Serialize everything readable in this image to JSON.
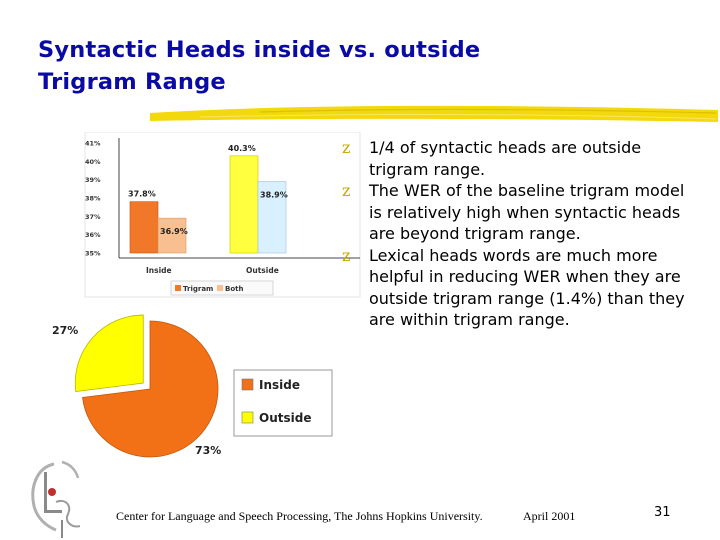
{
  "slide": {
    "title_line1": "Syntactic Heads inside vs. outside",
    "title_line2": "Trigram Range",
    "bullets": [
      "1/4 of syntactic heads are outside trigram range.",
      "The WER of the baseline trigram model is relatively high when syntactic heads are beyond trigram range.",
      "Lexical heads words are much more helpful in reducing WER when they are outside trigram range (1.4%) than they are within trigram range."
    ],
    "bullet_mark": "z",
    "footer_text": "Center for Language and Speech Processing, The Johns Hopkins University.",
    "footer_date": "April 2001",
    "page_number": "31"
  },
  "colors": {
    "title": "#0a0aa5",
    "rule": "#f2d600",
    "bullet_mark": "#c9a400",
    "trigram": "#f07828",
    "both": "#f8c090",
    "outside_bar": "#ffff40",
    "outside_bar2": "#d8f0ff",
    "inside_slice": "#f27117",
    "outside_slice": "#ffff00"
  },
  "chart_data": [
    {
      "type": "bar",
      "categories": [
        "Inside",
        "Outside"
      ],
      "series": [
        {
          "name": "Trigram",
          "values": [
            37.8,
            40.3
          ]
        },
        {
          "name": "Both",
          "values": [
            36.9,
            38.9
          ]
        }
      ],
      "value_labels": [
        [
          "37.8%",
          "40.3%"
        ],
        [
          "36.9%",
          "38.9%"
        ]
      ],
      "yticks": [
        "41%",
        "40%",
        "39%",
        "38%",
        "37%",
        "36%",
        "35%"
      ],
      "ylim": [
        35,
        41
      ],
      "legend_placement": "bottom",
      "grid": false
    },
    {
      "type": "pie",
      "labels": [
        "Inside",
        "Outside"
      ],
      "values": [
        73,
        27
      ],
      "value_labels": [
        "73%",
        "27%"
      ],
      "legend_placement": "right"
    }
  ]
}
